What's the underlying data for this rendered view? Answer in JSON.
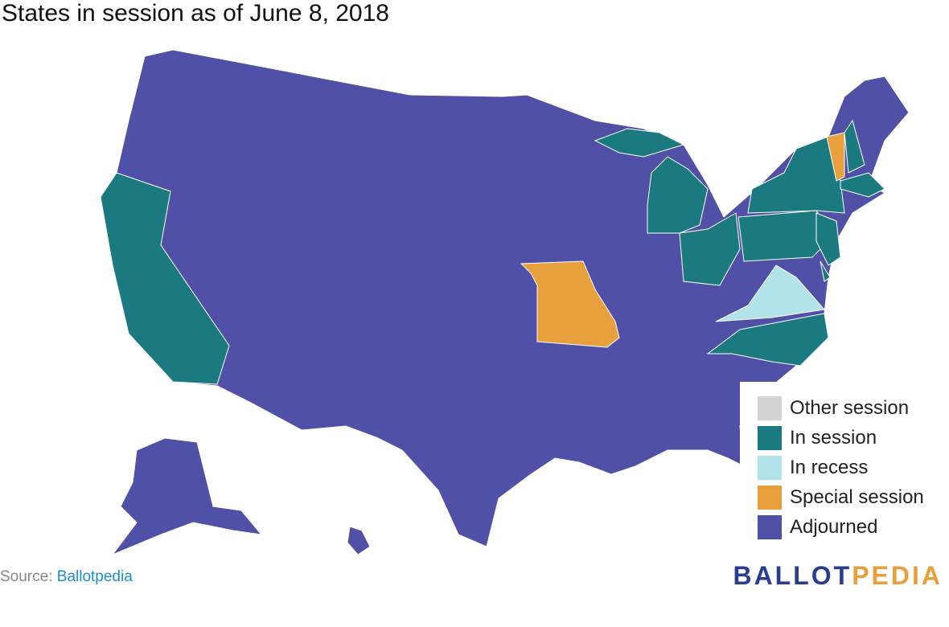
{
  "title": "States in session as of June 8, 2018",
  "legend": [
    {
      "label": "Other session",
      "color": "#d3d3d3"
    },
    {
      "label": "In session",
      "color": "#1b7a80"
    },
    {
      "label": "In recess",
      "color": "#b2e3ea"
    },
    {
      "label": "Special session",
      "color": "#e8a03c"
    },
    {
      "label": "Adjourned",
      "color": "#5050a6"
    }
  ],
  "source": {
    "prefix": "Source:",
    "link": "Ballotpedia"
  },
  "logo": {
    "first": "BALLOT",
    "second": "PEDIA"
  }
}
